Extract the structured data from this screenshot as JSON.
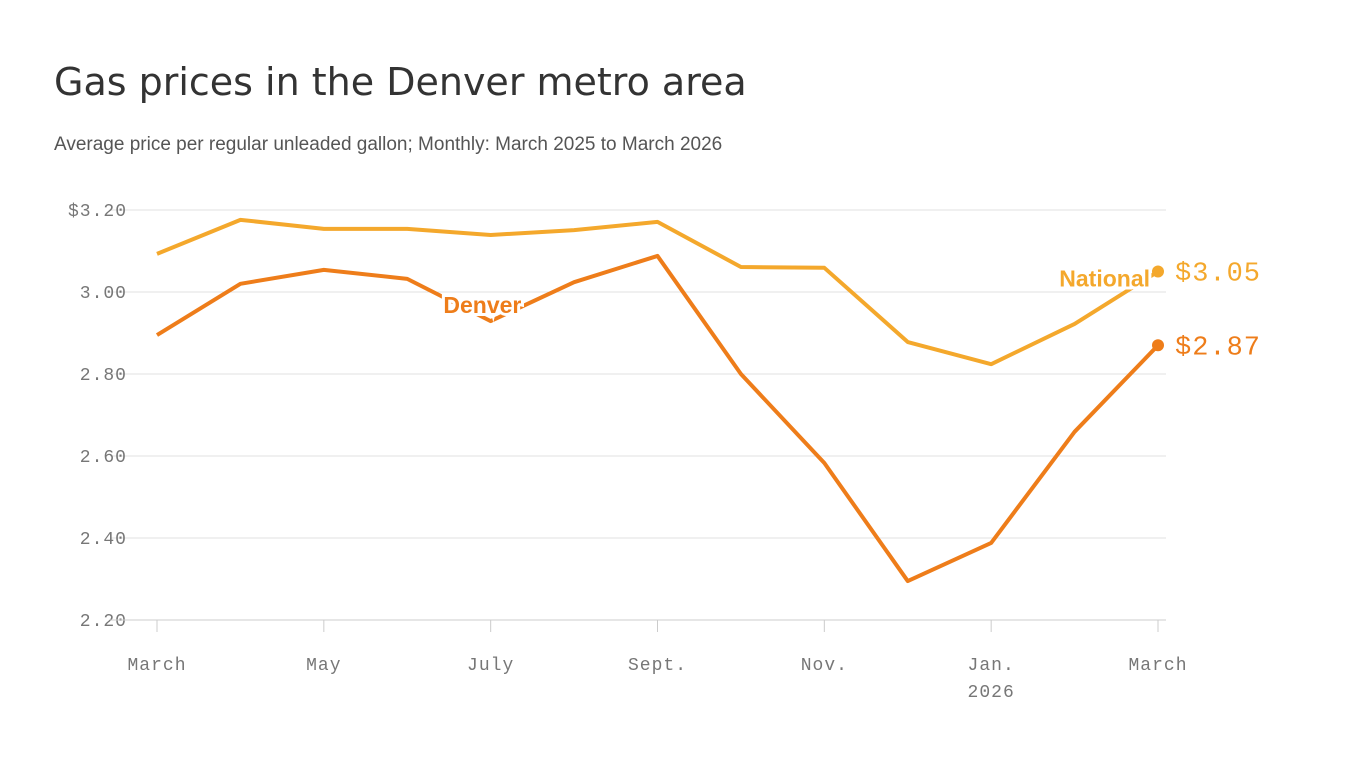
{
  "chart_data": {
    "type": "line",
    "title": "Gas prices in the Denver metro area",
    "subtitle": "Average price per regular unleaded gallon; Monthly: March 2025 to March 2026",
    "categories": [
      "March",
      null,
      "May",
      null,
      "July",
      null,
      "Sept.",
      null,
      "Nov.",
      null,
      "Jan.",
      null,
      "March"
    ],
    "year_label": "2026",
    "ylim": [
      2.2,
      3.2
    ],
    "yticks": [
      {
        "value": 2.2,
        "label": "2.20"
      },
      {
        "value": 2.4,
        "label": "2.40"
      },
      {
        "value": 2.6,
        "label": "2.60"
      },
      {
        "value": 2.8,
        "label": "2.80"
      },
      {
        "value": 3,
        "label": "3.00"
      },
      {
        "value": 3.2,
        "label": "$3.20"
      }
    ],
    "grid": true,
    "series": [
      {
        "name": "National",
        "color": "#f4a82c",
        "values": [
          3.093,
          3.176,
          3.154,
          3.154,
          3.139,
          3.151,
          3.171,
          3.061,
          3.059,
          2.878,
          2.824,
          2.922,
          3.05
        ],
        "value_labels": [
          null,
          null,
          null,
          null,
          null,
          null,
          null,
          null,
          null,
          null,
          null,
          null,
          "$3.05"
        ]
      },
      {
        "name": "Denver",
        "color": "#ee7d1a",
        "values": [
          2.895,
          3.02,
          3.054,
          3.032,
          2.929,
          3.024,
          3.088,
          2.8,
          2.583,
          2.295,
          2.388,
          2.659,
          2.87
        ],
        "value_labels": [
          null,
          null,
          null,
          null,
          null,
          null,
          null,
          null,
          null,
          null,
          null,
          null,
          "$2.87"
        ]
      }
    ]
  }
}
